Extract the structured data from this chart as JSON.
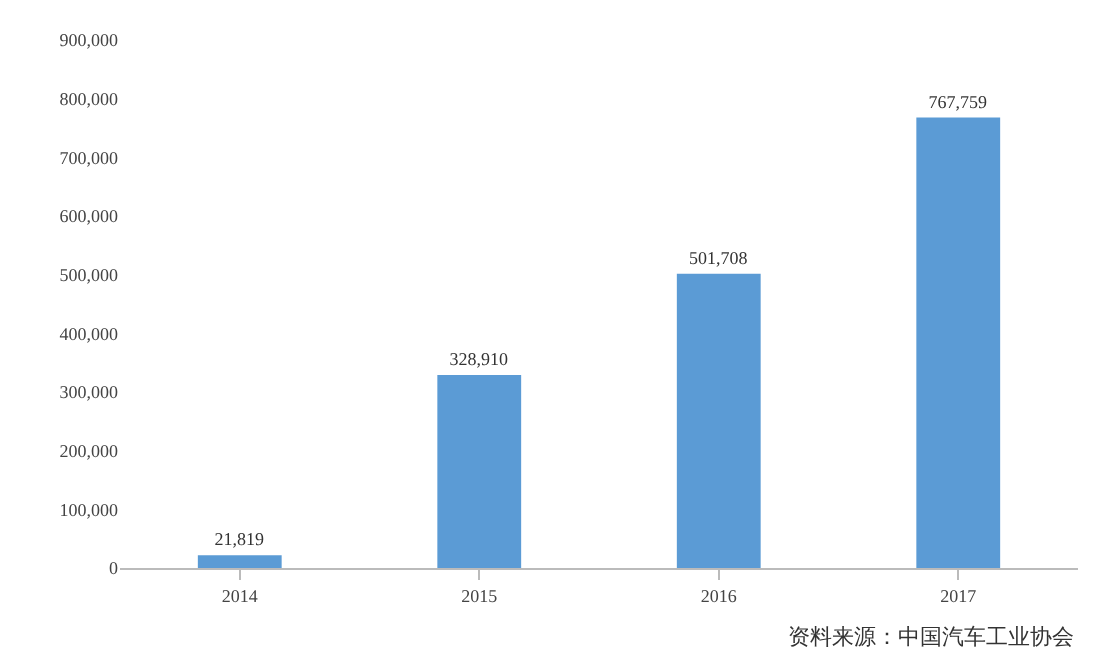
{
  "chart_data": {
    "type": "bar",
    "categories": [
      "2014",
      "2015",
      "2016",
      "2017"
    ],
    "values": [
      21819,
      328910,
      501708,
      767759
    ],
    "value_labels": [
      "21,819",
      "328,910",
      "501,708",
      "767,759"
    ],
    "color": "#5b9bd5",
    "ylim": [
      0,
      900000
    ],
    "yticks": [
      {
        "value": 0,
        "label": "0"
      },
      {
        "value": 100000,
        "label": "100,000"
      },
      {
        "value": 200000,
        "label": "200,000"
      },
      {
        "value": 300000,
        "label": "300,000"
      },
      {
        "value": 400000,
        "label": "400,000"
      },
      {
        "value": 500000,
        "label": "500,000"
      },
      {
        "value": 600000,
        "label": "600,000"
      },
      {
        "value": 700000,
        "label": "700,000"
      },
      {
        "value": 800000,
        "label": "800,000"
      },
      {
        "value": 900000,
        "label": "900,000"
      }
    ],
    "grid": false,
    "annotations": [
      "资料来源：中国汽车工业协会"
    ]
  }
}
